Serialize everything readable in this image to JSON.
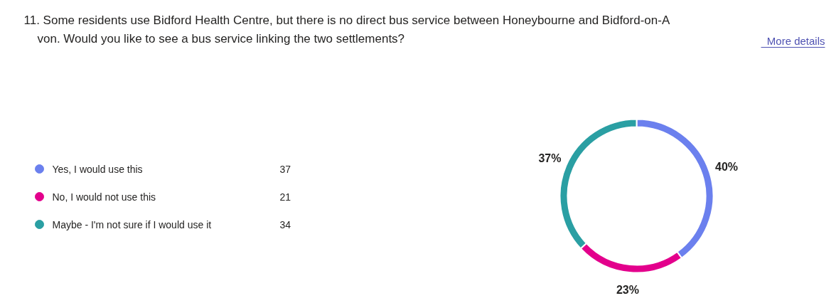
{
  "chart_data": {
    "type": "donut",
    "title": "11. Some residents use Bidford Health Centre, but there is no direct bus service between Honeybourne and Bidford-on-Avon. Would you like to see a bus service linking the two settlements?",
    "categories": [
      "Yes, I would use this",
      "No, I would not use this",
      "Maybe - I'm not sure if I would use it"
    ],
    "values": [
      40,
      23,
      37
    ],
    "colors": [
      "#6b80ee",
      "#e3008c",
      "#2a9fa3"
    ],
    "value_labels": [
      "40%",
      "23%",
      "37%"
    ],
    "legend": "left",
    "annotations": [
      "More details",
      "37",
      "21",
      "34"
    ]
  }
}
